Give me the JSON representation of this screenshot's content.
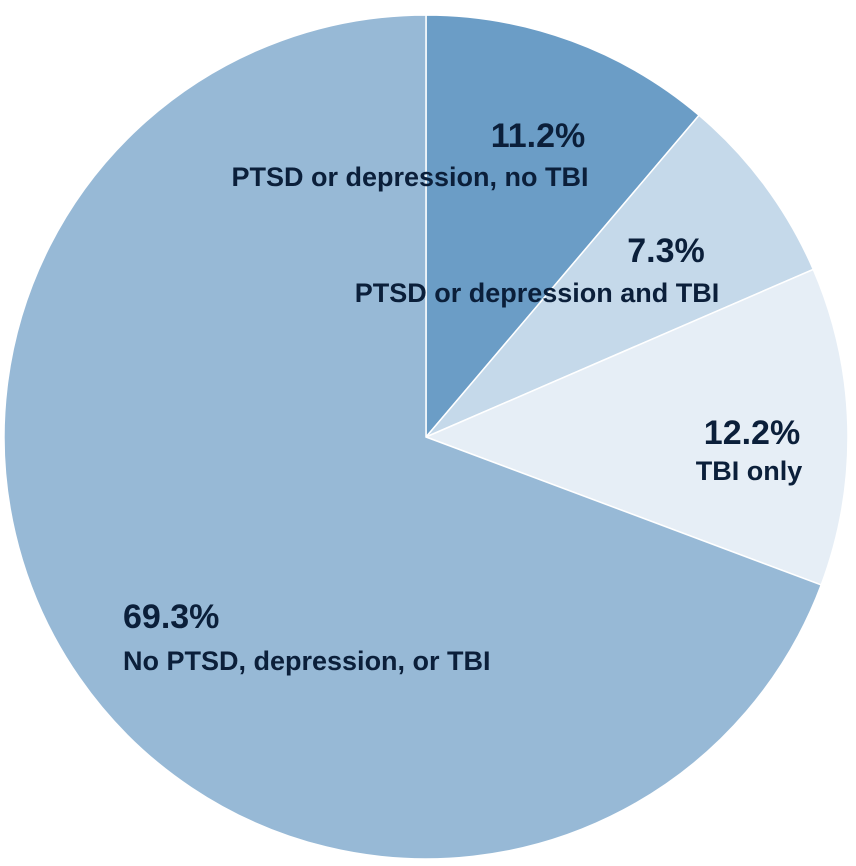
{
  "chart_data": {
    "type": "pie",
    "start": "12 o'clock",
    "direction": "clockwise",
    "slices": [
      {
        "label": "PTSD or depression, no TBI",
        "value": 11.2,
        "value_label": "11.2%",
        "color": "#6b9dc6"
      },
      {
        "label": "PTSD or depression and TBI",
        "value": 7.3,
        "value_label": "7.3%",
        "color": "#c5d9ea"
      },
      {
        "label": "TBI only",
        "value": 12.2,
        "value_label": "12.2%",
        "color": "#e6eef6"
      },
      {
        "label": "No PTSD, depression, or TBI",
        "value": 69.3,
        "value_label": "69.3%",
        "color": "#97b9d6"
      }
    ]
  }
}
